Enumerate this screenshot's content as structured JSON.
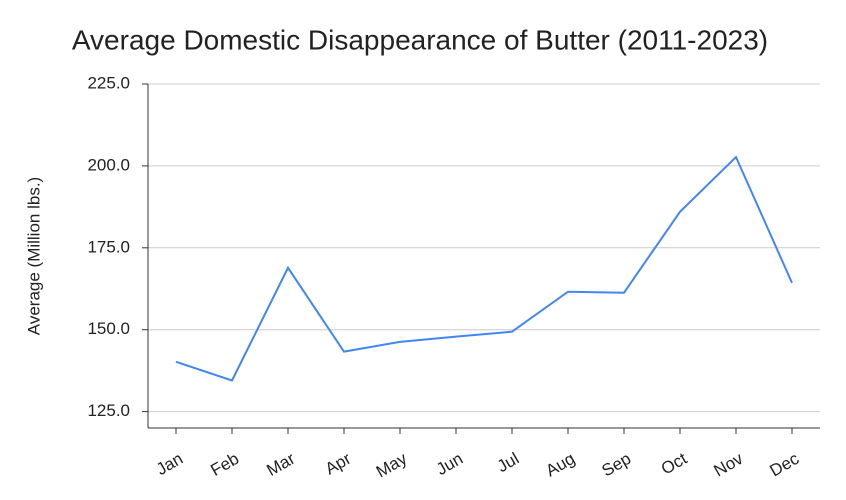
{
  "chart_data": {
    "type": "line",
    "title": "Average Domestic Disappearance of Butter (2011-2023)",
    "y_label": "Average (Million lbs.)",
    "categories": [
      "Jan",
      "Feb",
      "Mar",
      "Apr",
      "May",
      "Jun",
      "Jul",
      "Aug",
      "Sep",
      "Oct",
      "Nov",
      "Dec"
    ],
    "series": [
      {
        "name": "Average",
        "color": "#4285f4",
        "values": [
          140.2,
          134.5,
          168.9,
          143.3,
          146.3,
          147.9,
          149.4,
          161.6,
          161.3,
          186.0,
          202.7,
          164.3
        ]
      }
    ],
    "ylim": [
      120,
      225
    ],
    "yticks": [
      {
        "value": 125,
        "label": "125.0"
      },
      {
        "value": 150,
        "label": "150.0"
      },
      {
        "value": 175,
        "label": "175.0"
      },
      {
        "value": 200,
        "label": "200.0"
      },
      {
        "value": 225,
        "label": "225.0"
      }
    ],
    "grid": true
  }
}
